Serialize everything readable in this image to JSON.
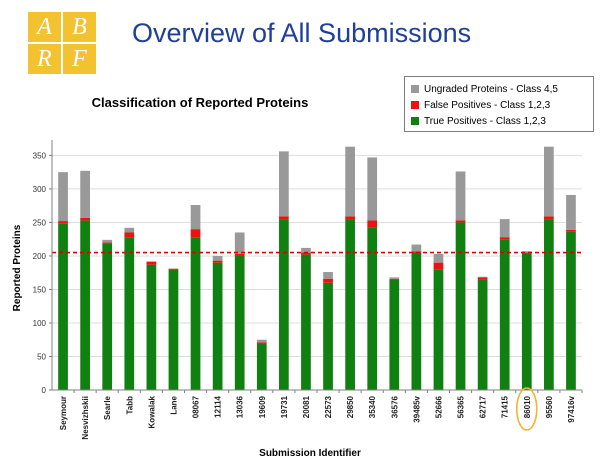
{
  "slide": {
    "logo_letters": [
      "A",
      "B",
      "R",
      "F"
    ],
    "title": "Overview of All Submissions"
  },
  "colors": {
    "true_positives": "#108010",
    "false_positives": "#ee1111",
    "ungraded": "#999999",
    "reference_line": "#dd0000",
    "highlight": "#f2b533",
    "title": "#1f3f99"
  },
  "chart_data": {
    "type": "bar",
    "stacked": true,
    "title": "Classification of Reported Proteins",
    "xlabel": "Submission Identifier",
    "ylabel": "Reported Proteins",
    "ylim": [
      0,
      370
    ],
    "yticks": [
      0,
      50,
      100,
      150,
      200,
      250,
      300,
      350
    ],
    "grid": true,
    "legend_position": "top-right",
    "categories": [
      "Seymour",
      "Nesvizhskii",
      "Searle",
      "Tabb",
      "Kowalak",
      "Lane",
      "08067",
      "12114",
      "13036",
      "19609",
      "19731",
      "20081",
      "22573",
      "29850",
      "35340",
      "36576",
      "39485v",
      "52666",
      "56365",
      "62717",
      "71415",
      "86010",
      "95560",
      "97416v"
    ],
    "series": [
      {
        "name": "True Positives - Class 1,2,3",
        "color": "#108010",
        "values": [
          248,
          253,
          218,
          227,
          187,
          180,
          228,
          190,
          200,
          70,
          255,
          202,
          160,
          255,
          243,
          165,
          205,
          180,
          250,
          165,
          225,
          203,
          255,
          236
        ]
      },
      {
        "name": "False Positives - Class 1,2,3",
        "color": "#ee1111",
        "values": [
          4,
          4,
          2,
          8,
          4,
          1,
          12,
          3,
          3,
          1,
          4,
          3,
          6,
          4,
          10,
          1,
          2,
          10,
          3,
          3,
          3,
          2,
          4,
          3
        ]
      },
      {
        "name": "Ungraded Proteins - Class 4,5",
        "color": "#999999",
        "values": [
          73,
          70,
          4,
          7,
          1,
          0,
          36,
          7,
          32,
          4,
          97,
          7,
          10,
          104,
          94,
          2,
          10,
          13,
          73,
          1,
          27,
          2,
          104,
          52
        ]
      }
    ],
    "reference_line": {
      "value": 205,
      "style": "dashed"
    },
    "highlighted_category": "86010"
  }
}
